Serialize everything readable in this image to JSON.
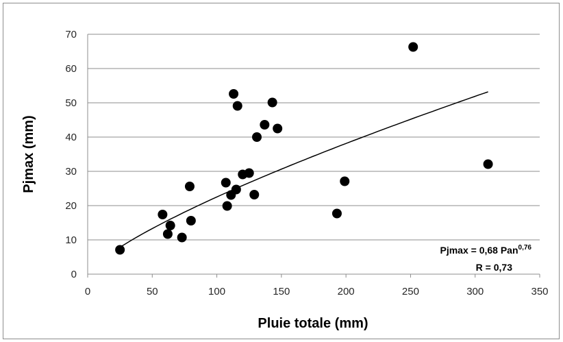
{
  "chart_data": {
    "type": "scatter",
    "title": "",
    "xlabel": "Pluie totale (mm)",
    "ylabel": "Pjmax (mm)",
    "xlim": [
      0,
      350
    ],
    "ylim": [
      0,
      70
    ],
    "xticks": [
      "0",
      "50",
      "100",
      "150",
      "200",
      "250",
      "300",
      "350"
    ],
    "yticks": [
      "0",
      "10",
      "20",
      "30",
      "40",
      "50",
      "60",
      "70"
    ],
    "grid": "horizontal",
    "legend": "none",
    "points": [
      {
        "x": 25,
        "y": 7.1
      },
      {
        "x": 58,
        "y": 17.4
      },
      {
        "x": 62,
        "y": 11.7
      },
      {
        "x": 64,
        "y": 14.2
      },
      {
        "x": 73,
        "y": 10.7
      },
      {
        "x": 79,
        "y": 25.6
      },
      {
        "x": 80,
        "y": 15.6
      },
      {
        "x": 107,
        "y": 26.7
      },
      {
        "x": 108,
        "y": 19.9
      },
      {
        "x": 111,
        "y": 23.1
      },
      {
        "x": 113,
        "y": 52.6
      },
      {
        "x": 115,
        "y": 24.7
      },
      {
        "x": 116,
        "y": 49.1
      },
      {
        "x": 120,
        "y": 29.1
      },
      {
        "x": 125,
        "y": 29.5
      },
      {
        "x": 129,
        "y": 23.2
      },
      {
        "x": 131,
        "y": 40
      },
      {
        "x": 137,
        "y": 43.6
      },
      {
        "x": 143,
        "y": 50.1
      },
      {
        "x": 147,
        "y": 42.5
      },
      {
        "x": 193,
        "y": 17.7
      },
      {
        "x": 199,
        "y": 27.1
      },
      {
        "x": 252,
        "y": 66.3
      },
      {
        "x": 310,
        "y": 32.1
      }
    ],
    "trendline": {
      "type": "power",
      "coefficient": 0.68,
      "exponent": 0.76,
      "x_range": [
        25,
        310
      ]
    },
    "annotation": {
      "equation_prefix": "Pjmax = 0,68 Pan",
      "equation_exponent": "0,76",
      "r_text": "R = 0,73"
    }
  }
}
